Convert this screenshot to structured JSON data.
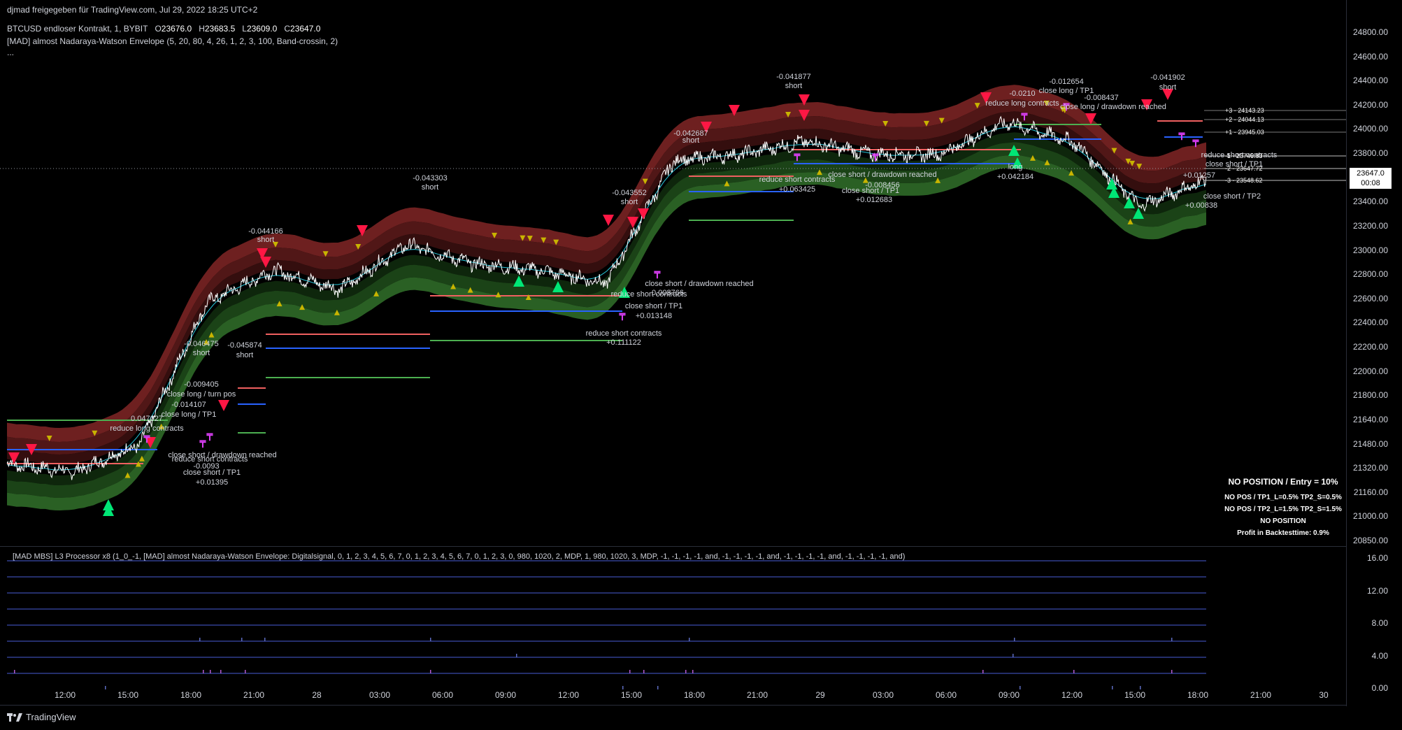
{
  "header": {
    "shared_by": "djmad freigegeben für TradingView.com, Jul 29, 2022 18:25 UTC+2",
    "symbol_line_prefix": "BTCUSD endloser Kontrakt, 1, BYBIT",
    "open_label": "O",
    "open_value": "23676.0",
    "high_label": "H",
    "high_value": "23683.5",
    "low_label": "L",
    "low_value": "23609.0",
    "close_label": "C",
    "close_value": "23647.0",
    "indicator_line": "[MAD] almost Nadaraya-Watson Envelope (5, 20, 80, 4, 26, 1, 2, 3, 100, Band-crossin, 2)",
    "more": "..."
  },
  "price_axis": {
    "labels": [
      "24800.00",
      "24600.00",
      "24400.00",
      "24200.00",
      "24000.00",
      "23800.00",
      "23600.00",
      "23400.00",
      "23200.00",
      "23000.00",
      "22800.00",
      "22600.00",
      "22400.00",
      "22200.00",
      "22000.00",
      "21800.00",
      "21640.00",
      "21480.00",
      "21320.00",
      "21160.00",
      "21000.00",
      "20850.00"
    ],
    "current_price": "23647.0",
    "countdown": "00:08"
  },
  "sub_axis": {
    "labels": [
      "16.00",
      "12.00",
      "8.00",
      "4.00",
      "0.00"
    ]
  },
  "time_axis": {
    "labels": [
      "12:00",
      "15:00",
      "18:00",
      "21:00",
      "28",
      "03:00",
      "06:00",
      "09:00",
      "12:00",
      "15:00",
      "18:00",
      "21:00",
      "29",
      "03:00",
      "06:00",
      "09:00",
      "12:00",
      "15:00",
      "18:00",
      "21:00",
      "30"
    ]
  },
  "colors": {
    "bg": "#000000",
    "up": "#00e676",
    "down": "#ff1744",
    "yellow": "#c8b400",
    "magenta": "#e040fb",
    "red_band": "#8b2a2a",
    "green_band": "#2e6b2a",
    "blue_line": "#2962ff",
    "salmon_line": "#f06060",
    "green_line": "#4caf50"
  },
  "levels": [
    {
      "label": "+3 - 24143.23"
    },
    {
      "label": "+2 - 24044.13"
    },
    {
      "label": "+1 - 23945.03"
    },
    {
      "label": "-1 - 23746.83"
    },
    {
      "label": "-2 - 23647.72"
    },
    {
      "label": "-3 - 23548.62"
    }
  ],
  "status_box": {
    "line1": "NO POSITION / Entry = 10%",
    "line2": "NO POS / TP1_L=0.5% TP2_S=0.5%",
    "line3": "NO POS / TP2_L=1.5% TP2_S=1.5%",
    "line4": "NO POSITION",
    "line5": "Profit in Backtesttime: 0.9%"
  },
  "subpanel": {
    "title": "[MAD MBS] L3 Processor x8 (1_0_-1, [MAD] almost Nadaraya-Watson Envelope: Digitalsignal, 0, 1, 2, 3, 4, 5, 6, 7, 0, 1, 2, 3, 4, 5, 6, 7, 0, 1, 2, 3, 0, 980, 1020, 2, MDP, 1, 980, 1020, 3, MDP, -1, -1, -1, -1, and, -1, -1, -1, -1, and, -1, -1, -1, -1, and, -1, -1, -1, -1, and)"
  },
  "annotations": [
    {
      "t": "-0.046475"
    },
    {
      "t": "short"
    },
    {
      "t": "-0.009405"
    },
    {
      "t": "close long / turn pos"
    },
    {
      "t": "-0.014107"
    },
    {
      "t": "0.047027"
    },
    {
      "t": "close long / TP1"
    },
    {
      "t": "reduce long contracts"
    },
    {
      "t": "-0.045874"
    },
    {
      "t": "short"
    },
    {
      "t": "close short / drawdown reached"
    },
    {
      "t": "reduce short contracts"
    },
    {
      "t": "-0.0093"
    },
    {
      "t": "close short / TP1"
    },
    {
      "t": "+0.01395"
    },
    {
      "t": "-0.044166"
    },
    {
      "t": "short"
    },
    {
      "t": "-0.043303"
    },
    {
      "t": "short"
    },
    {
      "t": "-0.043552"
    },
    {
      "t": "short"
    },
    {
      "t": "close short / drawdown reached"
    },
    {
      "t": "reduce short contracts"
    },
    {
      "t": "0.008766"
    },
    {
      "t": "close short / TP1"
    },
    {
      "t": "+0.013148"
    },
    {
      "t": "reduce short contracts"
    },
    {
      "t": "+0.111122"
    },
    {
      "t": "-0.042687"
    },
    {
      "t": "short"
    },
    {
      "t": "-0.041877"
    },
    {
      "t": "short"
    },
    {
      "t": "reduce short contracts"
    },
    {
      "t": "+0.063425"
    },
    {
      "t": "close short / drawdown reached"
    },
    {
      "t": "-0.008456"
    },
    {
      "t": "close short / TP1"
    },
    {
      "t": "+0.012683"
    },
    {
      "t": "-0.0210"
    },
    {
      "t": "reduce long contracts"
    },
    {
      "t": "-0.012654"
    },
    {
      "t": "close long / TP1"
    },
    {
      "t": "-0.008437"
    },
    {
      "t": "close long / drawdown reached"
    },
    {
      "t": "long"
    },
    {
      "t": "+0.042184"
    },
    {
      "t": "-0.041902"
    },
    {
      "t": "short"
    },
    {
      "t": "reduce short contracts"
    },
    {
      "t": "close short / TP1"
    },
    {
      "t": "+0.01257"
    },
    {
      "t": "close short / TP2"
    },
    {
      "t": "+0.00838"
    }
  ],
  "footer": {
    "brand": "TradingView"
  },
  "chart_data": {
    "type": "line",
    "title": "",
    "series": [
      {
        "name": "",
        "x": [
          "12:00",
          "15:00",
          "18:00",
          "21:00",
          "28",
          "03:00",
          "06:00",
          "09:00",
          "12:00",
          "15:00",
          "18:00",
          "21:00",
          "29",
          "03:00",
          "06:00",
          "09:00",
          "12:00",
          "15:00",
          "18:00"
        ],
        "values": [
          21450,
          21380,
          21600,
          22700,
          22950,
          22800,
          23150,
          23000,
          22950,
          22850,
          23800,
          23850,
          23950,
          23850,
          23850,
          24100,
          23950,
          23450,
          23650
        ]
      }
    ],
    "ylim": [
      20850,
      24800
    ]
  }
}
